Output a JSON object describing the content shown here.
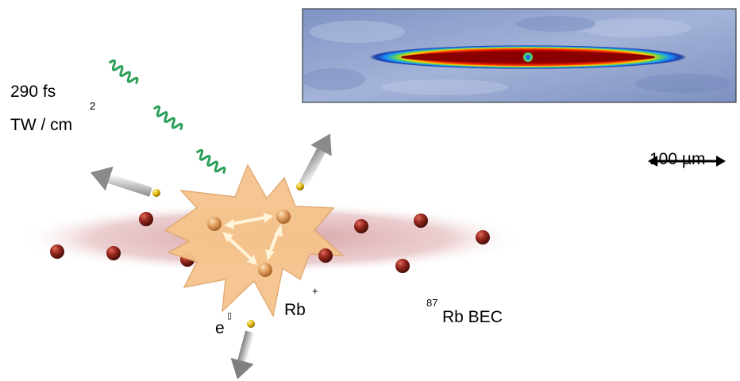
{
  "labels": {
    "pulse_duration": "290 fs",
    "intensity_unit": "TW / cm",
    "intensity_exp": "2",
    "electron": "e",
    "electron_sup": "▯",
    "ion": "Rb",
    "ion_charge": "+",
    "bec_isotope": "87",
    "bec": "Rb BEC",
    "scale_bar": "100 µm"
  },
  "colors": {
    "cloud": "#d9a4a6",
    "atom": "#8c1f1a",
    "ion": "#e0a060",
    "explosion": "#f5c48c",
    "electron": "#e0b000",
    "laser": "#2ca05a",
    "arrow": "#8f8f8f",
    "absorption_bg": "#8c9fc7"
  }
}
